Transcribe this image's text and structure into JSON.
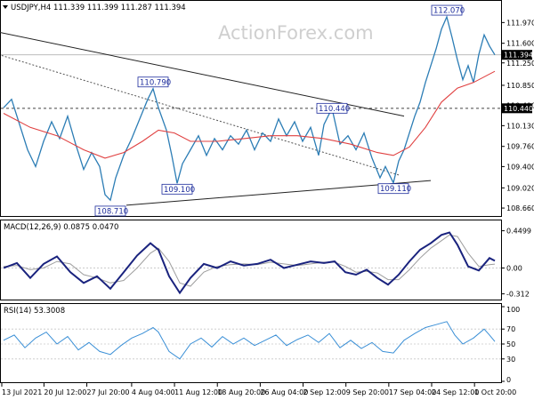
{
  "watermark": "ActionForex.com",
  "chart_data": [
    {
      "type": "line",
      "panel": "price",
      "title": "USDJPY,H4 111.339 111.399 111.287 111.394",
      "ylim": [
        108.55,
        112.15
      ],
      "y_ticks": [
        "111.970",
        "111.600",
        "111.250",
        "110.850",
        "110.490",
        "110.130",
        "109.760",
        "109.400",
        "109.020",
        "108.660"
      ],
      "current_price": "111.394",
      "level_line": {
        "value": 110.44,
        "label": "110.440"
      },
      "series": [
        {
          "name": "",
          "color": "#2c7db5",
          "points": [
            [
              0,
              110.45
            ],
            [
              3,
              110.6
            ],
            [
              6,
              110.15
            ],
            [
              9,
              109.7
            ],
            [
              12,
              109.4
            ],
            [
              15,
              109.85
            ],
            [
              18,
              110.2
            ],
            [
              21,
              109.9
            ],
            [
              24,
              110.3
            ],
            [
              27,
              109.8
            ],
            [
              30,
              109.35
            ],
            [
              33,
              109.65
            ],
            [
              36,
              109.4
            ],
            [
              38,
              108.9
            ],
            [
              40,
              108.8
            ],
            [
              42,
              109.2
            ],
            [
              45,
              109.6
            ],
            [
              48,
              109.9
            ],
            [
              51,
              110.25
            ],
            [
              54,
              110.6
            ],
            [
              56,
              110.79
            ],
            [
              58,
              110.45
            ],
            [
              61,
              110.05
            ],
            [
              63,
              109.6
            ],
            [
              65,
              109.1
            ],
            [
              67,
              109.45
            ],
            [
              70,
              109.7
            ],
            [
              73,
              109.95
            ],
            [
              76,
              109.6
            ],
            [
              79,
              109.9
            ],
            [
              82,
              109.7
            ],
            [
              85,
              109.95
            ],
            [
              88,
              109.8
            ],
            [
              91,
              110.05
            ],
            [
              94,
              109.7
            ],
            [
              97,
              110.0
            ],
            [
              100,
              109.85
            ],
            [
              103,
              110.25
            ],
            [
              106,
              109.95
            ],
            [
              109,
              110.2
            ],
            [
              112,
              109.85
            ],
            [
              115,
              110.1
            ],
            [
              118,
              109.6
            ],
            [
              120,
              110.15
            ],
            [
              123,
              110.44
            ],
            [
              126,
              109.8
            ],
            [
              129,
              109.95
            ],
            [
              132,
              109.7
            ],
            [
              135,
              110.0
            ],
            [
              138,
              109.55
            ],
            [
              141,
              109.2
            ],
            [
              143,
              109.4
            ],
            [
              146,
              109.11
            ],
            [
              148,
              109.5
            ],
            [
              150,
              109.7
            ],
            [
              152,
              110.0
            ],
            [
              154,
              110.3
            ],
            [
              156,
              110.55
            ],
            [
              158,
              110.9
            ],
            [
              160,
              111.2
            ],
            [
              162,
              111.5
            ],
            [
              164,
              111.85
            ],
            [
              166,
              112.07
            ],
            [
              168,
              111.7
            ],
            [
              170,
              111.3
            ],
            [
              172,
              110.95
            ],
            [
              174,
              111.2
            ],
            [
              176,
              110.9
            ],
            [
              178,
              111.4
            ],
            [
              180,
              111.75
            ],
            [
              182,
              111.55
            ],
            [
              184,
              111.394
            ]
          ]
        },
        {
          "name": "",
          "color": "#e04040",
          "points": [
            [
              0,
              110.35
            ],
            [
              10,
              110.1
            ],
            [
              20,
              109.95
            ],
            [
              30,
              109.7
            ],
            [
              38,
              109.55
            ],
            [
              45,
              109.65
            ],
            [
              52,
              109.85
            ],
            [
              58,
              110.05
            ],
            [
              64,
              110.0
            ],
            [
              70,
              109.85
            ],
            [
              80,
              109.85
            ],
            [
              90,
              109.9
            ],
            [
              100,
              109.95
            ],
            [
              110,
              109.95
            ],
            [
              120,
              109.9
            ],
            [
              130,
              109.8
            ],
            [
              140,
              109.65
            ],
            [
              146,
              109.6
            ],
            [
              152,
              109.75
            ],
            [
              158,
              110.1
            ],
            [
              164,
              110.55
            ],
            [
              170,
              110.8
            ],
            [
              176,
              110.9
            ],
            [
              184,
              111.1
            ]
          ]
        }
      ],
      "trendlines": [
        {
          "style": "solid",
          "from": [
            -2,
            111.8
          ],
          "to": [
            150,
            110.3
          ]
        },
        {
          "style": "dotted",
          "from": [
            -2,
            111.4
          ],
          "to": [
            148,
            109.25
          ]
        },
        {
          "style": "solid",
          "from": [
            46,
            108.71
          ],
          "to": [
            160,
            109.15
          ]
        }
      ],
      "annotations": [
        {
          "label": "112.070",
          "x": 166,
          "y": 112.07
        },
        {
          "label": "110.790",
          "x": 56,
          "y": 110.79
        },
        {
          "label": "110.440",
          "x": 123,
          "y": 110.44
        },
        {
          "label": "109.100",
          "x": 65,
          "y": 109.1
        },
        {
          "label": "109.110",
          "x": 146,
          "y": 109.11
        },
        {
          "label": "108.710",
          "x": 40,
          "y": 108.71
        }
      ]
    },
    {
      "type": "line",
      "panel": "macd",
      "title": "MACD(12,26,9) 0.0875 0.0470",
      "ylim": [
        -0.37,
        0.51
      ],
      "y_ticks": [
        "0.4499",
        "0.00",
        "-0.312"
      ],
      "series": [
        {
          "name": "",
          "color": "#1a237e",
          "points": [
            [
              0,
              0.0
            ],
            [
              5,
              0.06
            ],
            [
              10,
              -0.12
            ],
            [
              15,
              0.05
            ],
            [
              20,
              0.14
            ],
            [
              25,
              -0.05
            ],
            [
              30,
              -0.18
            ],
            [
              35,
              -0.1
            ],
            [
              40,
              -0.25
            ],
            [
              45,
              -0.05
            ],
            [
              50,
              0.15
            ],
            [
              55,
              0.3
            ],
            [
              58,
              0.22
            ],
            [
              62,
              -0.1
            ],
            [
              66,
              -0.3
            ],
            [
              70,
              -0.12
            ],
            [
              75,
              0.05
            ],
            [
              80,
              0.0
            ],
            [
              85,
              0.08
            ],
            [
              90,
              0.03
            ],
            [
              95,
              0.05
            ],
            [
              100,
              0.1
            ],
            [
              105,
              0.0
            ],
            [
              110,
              0.04
            ],
            [
              115,
              0.08
            ],
            [
              120,
              0.06
            ],
            [
              124,
              0.08
            ],
            [
              128,
              -0.05
            ],
            [
              132,
              -0.08
            ],
            [
              136,
              -0.02
            ],
            [
              140,
              -0.12
            ],
            [
              144,
              -0.2
            ],
            [
              148,
              -0.08
            ],
            [
              152,
              0.08
            ],
            [
              156,
              0.22
            ],
            [
              160,
              0.3
            ],
            [
              164,
              0.4
            ],
            [
              167,
              0.43
            ],
            [
              170,
              0.28
            ],
            [
              174,
              0.02
            ],
            [
              178,
              -0.03
            ],
            [
              182,
              0.12
            ],
            [
              184,
              0.0875
            ]
          ]
        },
        {
          "name": "",
          "color": "#9e9e9e",
          "points": [
            [
              0,
              0.02
            ],
            [
              5,
              0.03
            ],
            [
              10,
              -0.02
            ],
            [
              15,
              0.0
            ],
            [
              20,
              0.08
            ],
            [
              25,
              0.05
            ],
            [
              30,
              -0.08
            ],
            [
              35,
              -0.12
            ],
            [
              40,
              -0.18
            ],
            [
              45,
              -0.15
            ],
            [
              50,
              0.0
            ],
            [
              55,
              0.18
            ],
            [
              58,
              0.24
            ],
            [
              62,
              0.08
            ],
            [
              66,
              -0.18
            ],
            [
              70,
              -0.22
            ],
            [
              75,
              -0.05
            ],
            [
              80,
              0.02
            ],
            [
              85,
              0.04
            ],
            [
              90,
              0.05
            ],
            [
              95,
              0.04
            ],
            [
              100,
              0.07
            ],
            [
              105,
              0.05
            ],
            [
              110,
              0.03
            ],
            [
              115,
              0.05
            ],
            [
              120,
              0.07
            ],
            [
              124,
              0.07
            ],
            [
              128,
              0.02
            ],
            [
              132,
              -0.05
            ],
            [
              136,
              -0.04
            ],
            [
              140,
              -0.06
            ],
            [
              144,
              -0.14
            ],
            [
              148,
              -0.14
            ],
            [
              152,
              -0.02
            ],
            [
              156,
              0.12
            ],
            [
              160,
              0.24
            ],
            [
              164,
              0.33
            ],
            [
              167,
              0.4
            ],
            [
              170,
              0.38
            ],
            [
              174,
              0.18
            ],
            [
              178,
              0.02
            ],
            [
              182,
              0.04
            ],
            [
              184,
              0.047
            ]
          ]
        }
      ]
    },
    {
      "type": "line",
      "panel": "rsi",
      "title": "RSI(14) 53.3008",
      "ylim": [
        0,
        100
      ],
      "y_ticks": [
        "100",
        "70",
        "50",
        "30",
        "0"
      ],
      "series": [
        {
          "name": "",
          "color": "#3a8fd6",
          "points": [
            [
              0,
              55
            ],
            [
              4,
              62
            ],
            [
              8,
              45
            ],
            [
              12,
              58
            ],
            [
              16,
              66
            ],
            [
              20,
              50
            ],
            [
              24,
              60
            ],
            [
              28,
              42
            ],
            [
              32,
              52
            ],
            [
              36,
              40
            ],
            [
              40,
              36
            ],
            [
              44,
              48
            ],
            [
              48,
              58
            ],
            [
              52,
              64
            ],
            [
              56,
              72
            ],
            [
              58,
              66
            ],
            [
              62,
              40
            ],
            [
              66,
              30
            ],
            [
              70,
              50
            ],
            [
              74,
              58
            ],
            [
              78,
              46
            ],
            [
              82,
              60
            ],
            [
              86,
              50
            ],
            [
              90,
              58
            ],
            [
              94,
              48
            ],
            [
              98,
              55
            ],
            [
              102,
              62
            ],
            [
              106,
              48
            ],
            [
              110,
              56
            ],
            [
              114,
              62
            ],
            [
              118,
              52
            ],
            [
              122,
              64
            ],
            [
              126,
              45
            ],
            [
              130,
              55
            ],
            [
              134,
              44
            ],
            [
              138,
              52
            ],
            [
              142,
              40
            ],
            [
              146,
              38
            ],
            [
              150,
              55
            ],
            [
              154,
              64
            ],
            [
              158,
              72
            ],
            [
              162,
              76
            ],
            [
              166,
              80
            ],
            [
              169,
              62
            ],
            [
              172,
              50
            ],
            [
              176,
              58
            ],
            [
              180,
              70
            ],
            [
              182,
              62
            ],
            [
              184,
              53.3
            ]
          ]
        }
      ]
    }
  ],
  "x_ticks": [
    {
      "label": "13 Jul 2021",
      "x": -4
    },
    {
      "label": "20 Jul 12:00",
      "x": 18
    },
    {
      "label": "27 Jul 20:00",
      "x": 40
    },
    {
      "label": "4 Aug 04:00",
      "x": 63
    },
    {
      "label": "11 Aug 12:00",
      "x": 85
    },
    {
      "label": "18 Aug 20:00",
      "x": 107
    },
    {
      "label": "26 Aug 04:00",
      "x": 129
    },
    {
      "label": "2 Sep 12:00",
      "x": 151
    },
    {
      "label": "9 Sep 20:00",
      "x": 173
    },
    {
      "label": "17 Sep 04:00",
      "x": 195
    },
    {
      "label": "24 Sep 12:00",
      "x": 217
    },
    {
      "label": "1 Oct 20:00",
      "x": 239
    }
  ]
}
